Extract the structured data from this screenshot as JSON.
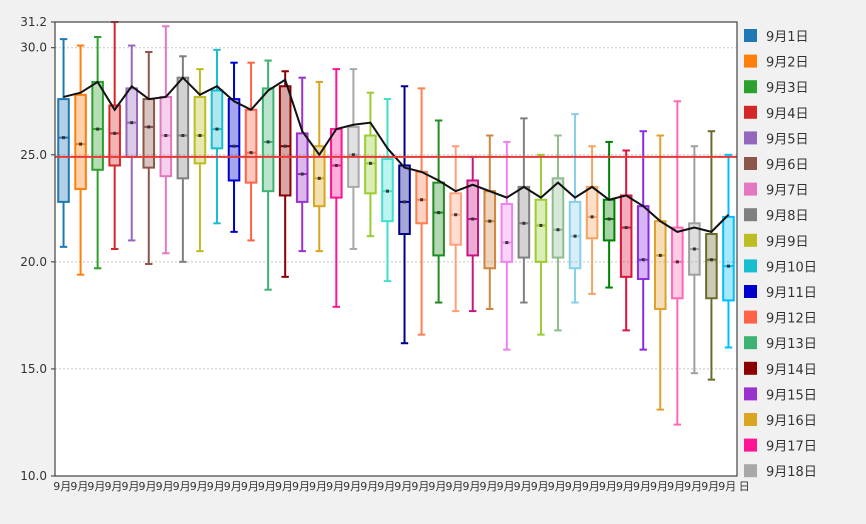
{
  "chart_data": {
    "type": "box",
    "ylim": [
      10.0,
      31.2
    ],
    "y_ticks": [
      "10.0",
      "15.0",
      "20.0",
      "25.0",
      "30.0",
      "31.2"
    ],
    "grid": {
      "horizontal": true,
      "style": "dotted"
    },
    "legend_position": "right",
    "reference_line": {
      "value": 24.9,
      "color": "#e53935"
    },
    "x_tick_label": "9月",
    "x_tick_label_end": "日",
    "series": [
      {
        "name": "9月1日",
        "color": "#1f77b4"
      },
      {
        "name": "9月2日",
        "color": "#ff7f0e"
      },
      {
        "name": "9月3日",
        "color": "#2ca02c"
      },
      {
        "name": "9月4日",
        "color": "#d62728"
      },
      {
        "name": "9月5日",
        "color": "#9467bd"
      },
      {
        "name": "9月6日",
        "color": "#8c564b"
      },
      {
        "name": "9月7日",
        "color": "#e377c2"
      },
      {
        "name": "9月8日",
        "color": "#7f7f7f"
      },
      {
        "name": "9月9日",
        "color": "#bcbd22"
      },
      {
        "name": "9月10日",
        "color": "#17becf"
      },
      {
        "name": "9月11日",
        "color": "#0000cd"
      },
      {
        "name": "9月12日",
        "color": "#ff6347"
      },
      {
        "name": "9月13日",
        "color": "#3cb371"
      },
      {
        "name": "9月14日",
        "color": "#8b0000"
      },
      {
        "name": "9月15日",
        "color": "#9932cc"
      },
      {
        "name": "9月16日",
        "color": "#daa520"
      },
      {
        "name": "9月17日",
        "color": "#ff1493"
      },
      {
        "name": "9月18日",
        "color": "#a9a9a9"
      }
    ],
    "boxes": [
      {
        "color": "#1f77b4",
        "min": 20.7,
        "q1": 22.8,
        "median": 25.8,
        "q3": 27.6,
        "max": 30.4
      },
      {
        "color": "#ff7f0e",
        "min": 19.4,
        "q1": 23.4,
        "median": 25.5,
        "q3": 27.8,
        "max": 30.1
      },
      {
        "color": "#2ca02c",
        "min": 19.7,
        "q1": 24.3,
        "median": 26.2,
        "q3": 28.4,
        "max": 30.5
      },
      {
        "color": "#d62728",
        "min": 20.6,
        "q1": 24.5,
        "median": 26.0,
        "q3": 27.3,
        "max": 31.2
      },
      {
        "color": "#9467bd",
        "min": 21.0,
        "q1": 24.9,
        "median": 26.5,
        "q3": 28.1,
        "max": 30.1
      },
      {
        "color": "#8c564b",
        "min": 19.9,
        "q1": 24.4,
        "median": 26.3,
        "q3": 27.6,
        "max": 29.8
      },
      {
        "color": "#e377c2",
        "min": 20.4,
        "q1": 24.0,
        "median": 25.9,
        "q3": 27.7,
        "max": 31.0
      },
      {
        "color": "#7f7f7f",
        "min": 20.0,
        "q1": 23.9,
        "median": 25.9,
        "q3": 28.6,
        "max": 29.6
      },
      {
        "color": "#bcbd22",
        "min": 20.5,
        "q1": 24.6,
        "median": 25.9,
        "q3": 27.7,
        "max": 29.0
      },
      {
        "color": "#17becf",
        "min": 21.8,
        "q1": 25.3,
        "median": 26.2,
        "q3": 28.0,
        "max": 29.9
      },
      {
        "color": "#0000cd",
        "min": 21.4,
        "q1": 23.8,
        "median": 25.4,
        "q3": 27.6,
        "max": 29.3
      },
      {
        "color": "#ff6347",
        "min": 21.0,
        "q1": 23.7,
        "median": 25.1,
        "q3": 27.1,
        "max": 29.3
      },
      {
        "color": "#3cb371",
        "min": 18.7,
        "q1": 23.3,
        "median": 25.6,
        "q3": 28.1,
        "max": 29.4
      },
      {
        "color": "#8b0000",
        "min": 19.3,
        "q1": 23.1,
        "median": 25.4,
        "q3": 28.2,
        "max": 28.9
      },
      {
        "color": "#9932cc",
        "min": 20.5,
        "q1": 22.8,
        "median": 24.1,
        "q3": 26.0,
        "max": 28.6
      },
      {
        "color": "#daa520",
        "min": 20.5,
        "q1": 22.6,
        "median": 23.9,
        "q3": 25.4,
        "max": 28.4
      },
      {
        "color": "#ff1493",
        "min": 17.9,
        "q1": 23.0,
        "median": 24.5,
        "q3": 26.2,
        "max": 29.0
      },
      {
        "color": "#a9a9a9",
        "min": 20.6,
        "q1": 23.5,
        "median": 25.0,
        "q3": 26.3,
        "max": 29.0
      },
      {
        "color": "#9acd32",
        "min": 21.2,
        "q1": 23.2,
        "median": 24.6,
        "q3": 25.9,
        "max": 27.9
      },
      {
        "color": "#40e0d0",
        "min": 19.1,
        "q1": 21.9,
        "median": 23.3,
        "q3": 24.8,
        "max": 27.6
      },
      {
        "color": "#00008b",
        "min": 16.2,
        "q1": 21.3,
        "median": 22.8,
        "q3": 24.5,
        "max": 28.2
      },
      {
        "color": "#ff7f50",
        "min": 16.6,
        "q1": 21.8,
        "median": 22.9,
        "q3": 24.2,
        "max": 28.1
      },
      {
        "color": "#228b22",
        "min": 18.1,
        "q1": 20.3,
        "median": 22.3,
        "q3": 23.7,
        "max": 26.6
      },
      {
        "color": "#ffa07a",
        "min": 17.7,
        "q1": 20.8,
        "median": 22.2,
        "q3": 23.2,
        "max": 25.4
      },
      {
        "color": "#c71585",
        "min": 17.7,
        "q1": 20.3,
        "median": 22.0,
        "q3": 23.8,
        "max": 24.9
      },
      {
        "color": "#cd853f",
        "min": 17.8,
        "q1": 19.7,
        "median": 21.9,
        "q3": 23.3,
        "max": 25.9
      },
      {
        "color": "#ee82ee",
        "min": 15.9,
        "q1": 20.0,
        "median": 20.9,
        "q3": 22.7,
        "max": 25.6
      },
      {
        "color": "#808080",
        "min": 18.1,
        "q1": 20.2,
        "median": 21.8,
        "q3": 23.5,
        "max": 26.7
      },
      {
        "color": "#9acd32",
        "min": 16.6,
        "q1": 20.0,
        "median": 21.7,
        "q3": 22.9,
        "max": 25.0
      },
      {
        "color": "#8fbc8f",
        "min": 16.8,
        "q1": 20.2,
        "median": 21.5,
        "q3": 23.9,
        "max": 25.9
      },
      {
        "color": "#87ceeb",
        "min": 18.1,
        "q1": 19.7,
        "median": 21.2,
        "q3": 22.8,
        "max": 26.9
      },
      {
        "color": "#f4a460",
        "min": 18.5,
        "q1": 21.1,
        "median": 22.1,
        "q3": 23.5,
        "max": 25.4
      },
      {
        "color": "#008000",
        "min": 18.8,
        "q1": 21.0,
        "median": 22.0,
        "q3": 22.9,
        "max": 25.6
      },
      {
        "color": "#dc143c",
        "min": 16.8,
        "q1": 19.3,
        "median": 21.6,
        "q3": 23.1,
        "max": 25.2
      },
      {
        "color": "#8a2be2",
        "min": 15.9,
        "q1": 19.2,
        "median": 20.1,
        "q3": 22.6,
        "max": 26.1
      },
      {
        "color": "#e0a030",
        "min": 13.1,
        "q1": 17.8,
        "median": 20.3,
        "q3": 21.9,
        "max": 25.9
      },
      {
        "color": "#ff69b4",
        "min": 12.4,
        "q1": 18.3,
        "median": 20.0,
        "q3": 21.6,
        "max": 27.5
      },
      {
        "color": "#a0a0a0",
        "min": 14.8,
        "q1": 19.4,
        "median": 20.6,
        "q3": 21.8,
        "max": 25.4
      },
      {
        "color": "#6b6b2f",
        "min": 14.5,
        "q1": 18.3,
        "median": 20.1,
        "q3": 21.3,
        "max": 26.1
      },
      {
        "color": "#00bfff",
        "min": 16.0,
        "q1": 18.2,
        "median": 19.8,
        "q3": 22.1,
        "max": 25.0
      }
    ],
    "mean_line": [
      27.7,
      27.9,
      28.4,
      27.1,
      28.2,
      27.6,
      27.7,
      28.6,
      27.8,
      28.2,
      27.5,
      27.1,
      28.0,
      28.5,
      26.1,
      25.0,
      26.2,
      26.4,
      26.5,
      25.3,
      24.4,
      24.2,
      23.8,
      23.3,
      23.6,
      23.3,
      23.0,
      23.5,
      23.0,
      23.7,
      23.0,
      23.5,
      22.9,
      23.1,
      22.6,
      21.9,
      21.4,
      21.6,
      21.4,
      22.2
    ]
  }
}
